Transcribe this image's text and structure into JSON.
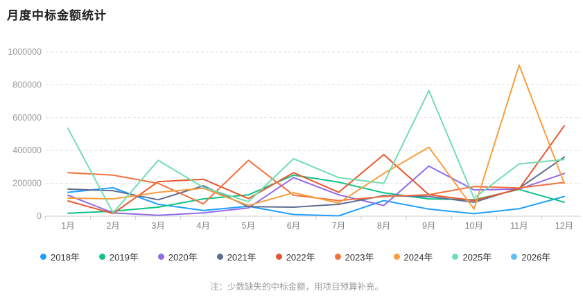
{
  "title": "月度中标金额统计",
  "note": "注：少数缺失的中标金额，用项目预算补充。",
  "colors": {
    "grid_line": "#e0e0e0",
    "axis_line": "#cccccc",
    "y_label": "#999999",
    "x_label": "#808080"
  },
  "chart_data": {
    "type": "line",
    "title": "月度中标金额统计",
    "xlabel": "",
    "ylabel": "",
    "ylim": [
      0,
      1000000
    ],
    "y_ticks": [
      0,
      200000,
      400000,
      600000,
      800000,
      1000000
    ],
    "grid": "horizontal-dashed",
    "legend_position": "bottom",
    "categories": [
      "1月",
      "2月",
      "3月",
      "4月",
      "5月",
      "6月",
      "7月",
      "8月",
      "9月",
      "10月",
      "11月",
      "12月"
    ],
    "series": [
      {
        "name": "2018年",
        "color": "#1e9fff",
        "values": [
          145000,
          173000,
          72000,
          35000,
          60000,
          10000,
          2000,
          95000,
          43000,
          15000,
          45000,
          120000
        ]
      },
      {
        "name": "2019年",
        "color": "#0fc286",
        "values": [
          18000,
          30000,
          55000,
          105000,
          130000,
          250000,
          207000,
          142000,
          105000,
          100000,
          163000,
          85000
        ]
      },
      {
        "name": "2020年",
        "color": "#8f6be8",
        "values": [
          128000,
          20000,
          5000,
          20000,
          50000,
          235000,
          130000,
          65000,
          305000,
          160000,
          165000,
          260000
        ]
      },
      {
        "name": "2021年",
        "color": "#5d6d92",
        "values": [
          165000,
          155000,
          100000,
          185000,
          58000,
          55000,
          72000,
          125000,
          120000,
          85000,
          170000,
          360000
        ]
      },
      {
        "name": "2022年",
        "color": "#e8562e",
        "values": [
          93000,
          16000,
          210000,
          225000,
          107000,
          265000,
          145000,
          375000,
          131000,
          95000,
          166000,
          550000
        ]
      },
      {
        "name": "2023年",
        "color": "#f2703d",
        "values": [
          265000,
          250000,
          200000,
          75000,
          340000,
          128000,
          95000,
          120000,
          131000,
          180000,
          172000,
          205000
        ]
      },
      {
        "name": "2024年",
        "color": "#f99d3e",
        "values": [
          110000,
          105000,
          145000,
          170000,
          65000,
          143000,
          80000,
          260000,
          420000,
          43000,
          920000,
          200000
        ]
      },
      {
        "name": "2025年",
        "color": "#71ddb1",
        "values": [
          535000,
          20000,
          340000,
          175000,
          88000,
          350000,
          235000,
          200000,
          765000,
          110000,
          318000,
          345000
        ]
      },
      {
        "name": "2026年",
        "color": "#63bdf4",
        "values": [
          null,
          null,
          null,
          null,
          null,
          null,
          null,
          null,
          null,
          null,
          null,
          null
        ]
      }
    ]
  }
}
